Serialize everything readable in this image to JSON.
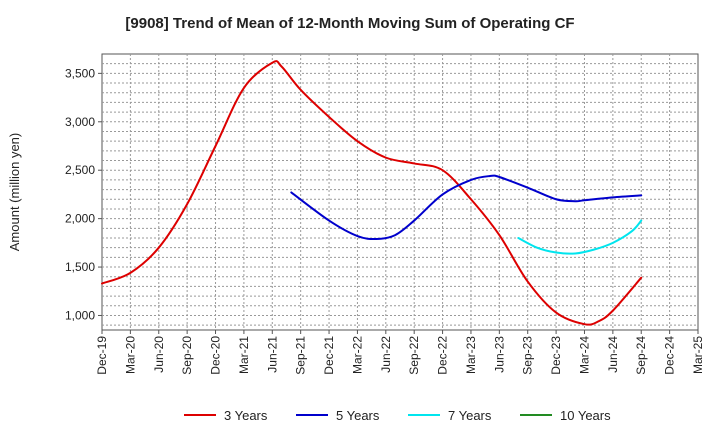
{
  "chart_data": {
    "type": "line",
    "title": "[9908]  Trend of Mean of 12-Month Moving Sum of Operating CF",
    "xlabel": "",
    "ylabel": "Amount (million yen)",
    "ylim": [
      850,
      3700
    ],
    "yticks": [
      1000,
      1500,
      2000,
      2500,
      3000,
      3500
    ],
    "ytick_labels": [
      "1,000",
      "1,500",
      "2,000",
      "2,500",
      "3,000",
      "3,500"
    ],
    "grid": true,
    "legend_position": "bottom",
    "categories": [
      "Dec-19",
      "Mar-20",
      "Jun-20",
      "Sep-20",
      "Dec-20",
      "Mar-21",
      "Jun-21",
      "Sep-21",
      "Dec-21",
      "Mar-22",
      "Jun-22",
      "Sep-22",
      "Dec-22",
      "Mar-23",
      "Jun-23",
      "Sep-23",
      "Dec-23",
      "Mar-24",
      "Jun-24",
      "Sep-24",
      "Dec-24",
      "Mar-25"
    ],
    "series": [
      {
        "name": "3 Years",
        "color": "#dd0000",
        "points": [
          [
            0,
            1330
          ],
          [
            1,
            1440
          ],
          [
            2,
            1700
          ],
          [
            3,
            2150
          ],
          [
            4,
            2750
          ],
          [
            5,
            3350
          ],
          [
            6,
            3610
          ],
          [
            6.33,
            3570
          ],
          [
            7,
            3330
          ],
          [
            8,
            3050
          ],
          [
            9,
            2800
          ],
          [
            10,
            2630
          ],
          [
            11,
            2570
          ],
          [
            12,
            2500
          ],
          [
            13,
            2200
          ],
          [
            14,
            1830
          ],
          [
            15,
            1350
          ],
          [
            16,
            1030
          ],
          [
            17,
            910
          ],
          [
            17.5,
            940
          ],
          [
            18,
            1050
          ],
          [
            19,
            1390
          ]
        ]
      },
      {
        "name": "5 Years",
        "color": "#0000cc",
        "points": [
          [
            6.67,
            2270
          ],
          [
            8,
            1980
          ],
          [
            9,
            1820
          ],
          [
            9.67,
            1790
          ],
          [
            10.33,
            1830
          ],
          [
            11,
            1980
          ],
          [
            12,
            2250
          ],
          [
            13,
            2400
          ],
          [
            13.67,
            2440
          ],
          [
            14,
            2430
          ],
          [
            15,
            2320
          ],
          [
            16,
            2200
          ],
          [
            16.67,
            2180
          ],
          [
            17,
            2190
          ],
          [
            18,
            2220
          ],
          [
            19,
            2240
          ]
        ]
      },
      {
        "name": "7 Years",
        "color": "#00e5ee",
        "points": [
          [
            14.67,
            1800
          ],
          [
            15.33,
            1700
          ],
          [
            16,
            1650
          ],
          [
            16.67,
            1640
          ],
          [
            17.33,
            1680
          ],
          [
            18,
            1750
          ],
          [
            18.67,
            1870
          ],
          [
            19,
            1980
          ]
        ]
      },
      {
        "name": "10 Years",
        "color": "#228b22",
        "points": []
      }
    ]
  }
}
